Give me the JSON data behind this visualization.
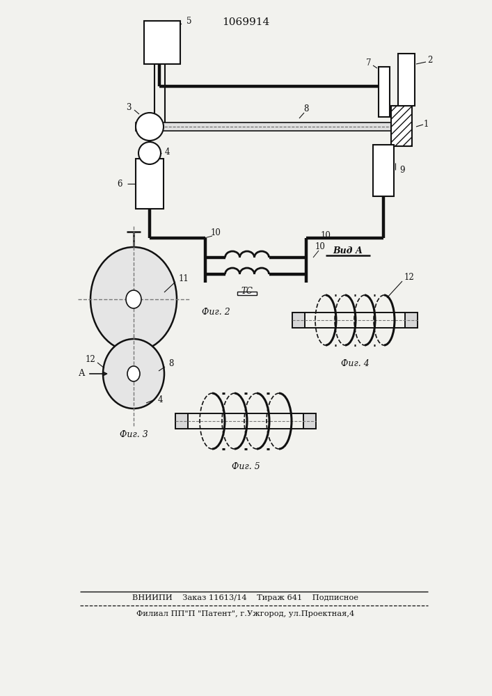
{
  "title": "1069914",
  "bg_color": "#f2f2ee",
  "lc": "#111111",
  "fig2_caption": "Фиг. 2",
  "fig3_caption": "Фиг. 3",
  "fig4_caption": "Фиг. 4",
  "fig5_caption": "Фиг. 5",
  "vid_a_label": "Вид А",
  "footer_line1": "ВНИИПИ    Заказ 11613/14    Тираж 641    Подписное",
  "footer_line2": "Филиал ПП\"П \"Патент\", г.Ужгород, ул.Проектная,4"
}
